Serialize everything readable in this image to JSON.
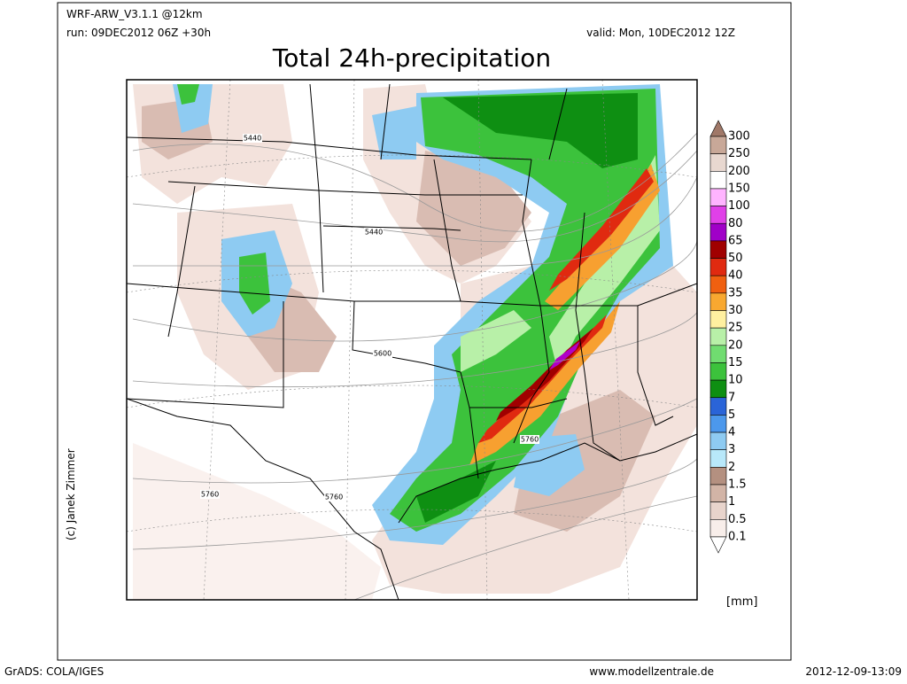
{
  "header": {
    "model": "WRF-ARW_V3.1.1  @12km",
    "run": "run: 09DEC2012 06Z +30h",
    "valid": "valid: Mon, 10DEC2012 12Z",
    "title": "Total 24h-precipitation"
  },
  "map": {
    "contour_labels": [
      "5440",
      "5440",
      "5600",
      "5760",
      "5760",
      "5760"
    ],
    "copyright": "(c) Janek Zimmer"
  },
  "legend": {
    "labels": [
      "300",
      "250",
      "200",
      "150",
      "100",
      "80",
      "65",
      "50",
      "40",
      "35",
      "30",
      "25",
      "20",
      "15",
      "10",
      "7",
      "5",
      "4",
      "3",
      "2",
      "1.5",
      "1",
      "0.5",
      "0.1"
    ],
    "unit": "[mm]"
  },
  "footer": {
    "software": "GrADS: COLA/IGES",
    "website": "www.modellzentrale.de",
    "timestamp": "2012-12-09-13:09"
  }
}
